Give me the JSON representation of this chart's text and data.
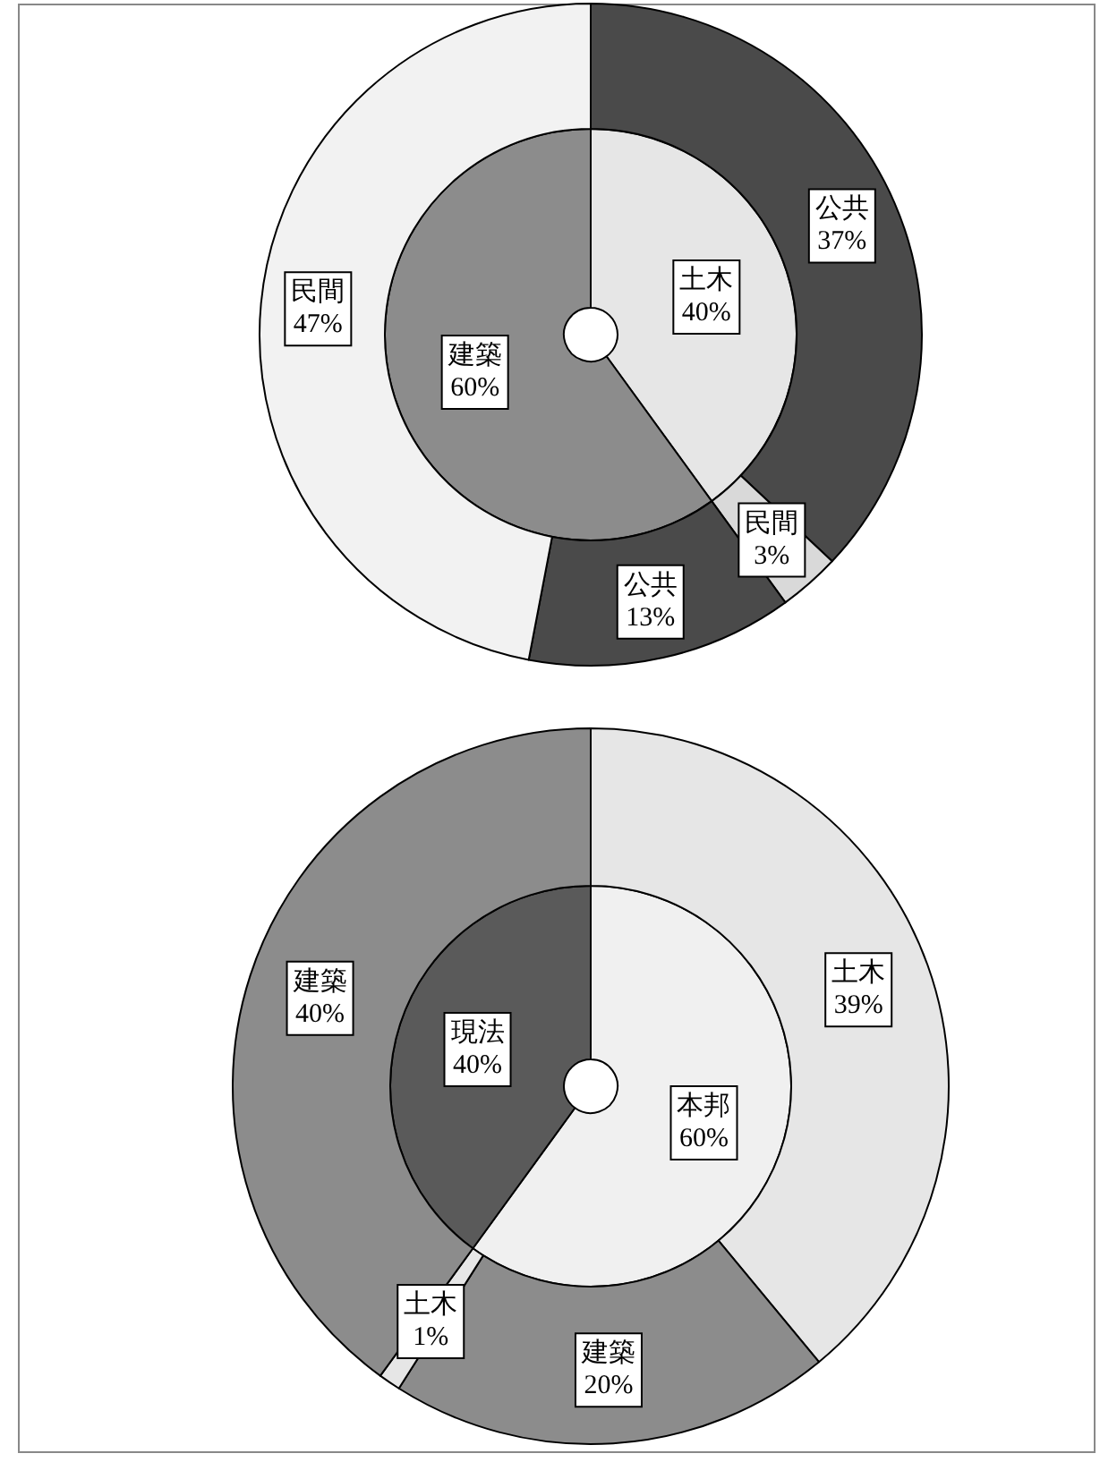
{
  "chart_data": [
    {
      "type": "donut",
      "categories": [
        "土木",
        "建築"
      ],
      "values": [
        40,
        60
      ],
      "value_labels": [
        "40%",
        "60%"
      ],
      "colors": [
        "#e6e6e6",
        "#8c8c8c"
      ]
    },
    {
      "type": "donut",
      "categories": [
        "公共",
        "民間",
        "公共",
        "民間"
      ],
      "values": [
        37,
        3,
        13,
        47
      ],
      "value_labels": [
        "37%",
        "3%",
        "13%",
        "47%"
      ],
      "colors": [
        "#4a4a4a",
        "#d9d9d9",
        "#4a4a4a",
        "#f2f2f2"
      ]
    },
    {
      "type": "donut",
      "categories": [
        "本邦",
        "現法"
      ],
      "values": [
        60,
        40
      ],
      "value_labels": [
        "60%",
        "40%"
      ],
      "colors": [
        "#f0f0f0",
        "#5a5a5a"
      ]
    },
    {
      "type": "donut",
      "categories": [
        "土木",
        "建築",
        "土木",
        "建築"
      ],
      "values": [
        39,
        20,
        1,
        40
      ],
      "value_labels": [
        "39%",
        "20%",
        "1%",
        "40%"
      ],
      "colors": [
        "#e6e6e6",
        "#8c8c8c",
        "#e6e6e6",
        "#8c8c8c"
      ]
    }
  ]
}
